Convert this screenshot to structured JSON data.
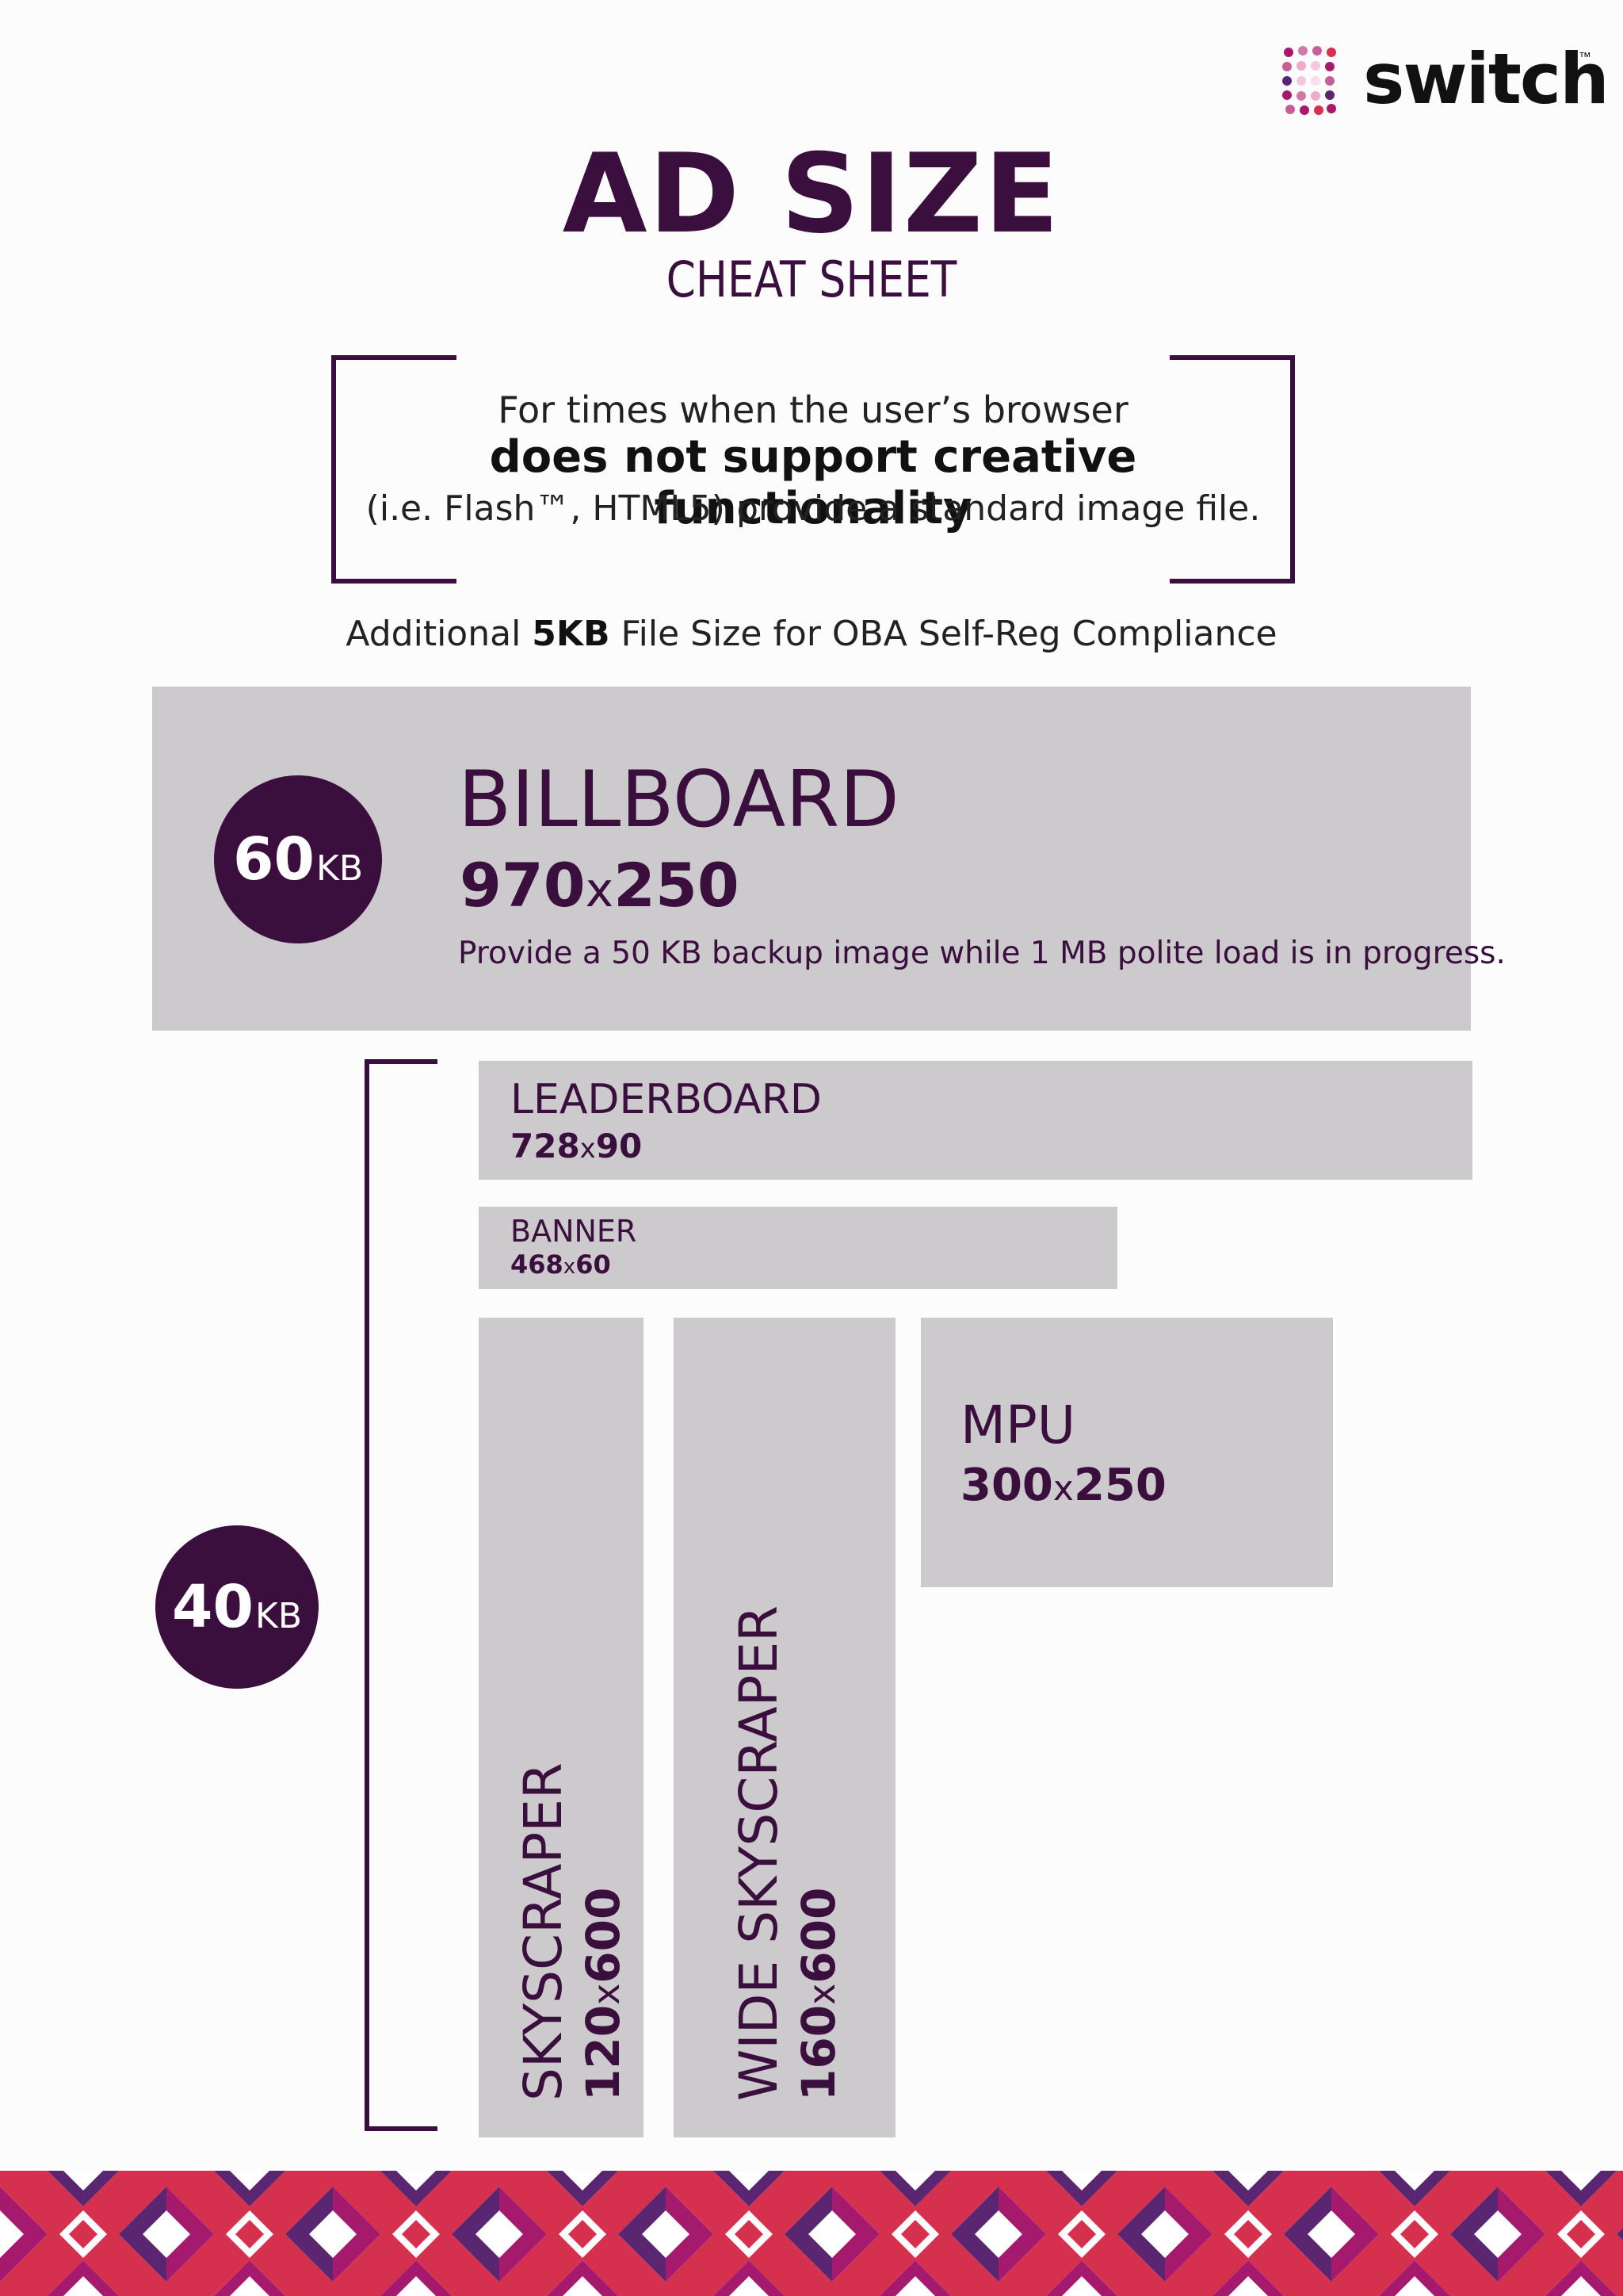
{
  "brand": {
    "name": "switch",
    "trademark": "™"
  },
  "header": {
    "title": "AD SIZE",
    "subtitle": "CHEAT SHEET"
  },
  "notice": {
    "line1": "For times when the user’s browser",
    "line2": "does not support creative functionality",
    "line3": "(i.e. Flash™, HTML5) provide a standard image file."
  },
  "compliance": {
    "prefix": "Additional ",
    "bold": "5KB",
    "suffix": " File Size for OBA Self-Reg Compliance"
  },
  "billboard": {
    "kb_num": "60",
    "kb_unit": "KB",
    "name": "BILLBOARD",
    "w": "970",
    "x": "x",
    "h": "250",
    "note": "Provide a 50 KB backup image while 1 MB polite load is in progress."
  },
  "group40": {
    "kb_num": "40",
    "kb_unit": "KB"
  },
  "leaderboard": {
    "name": "LEADERBOARD",
    "w": "728",
    "x": "x",
    "h": "90"
  },
  "banner": {
    "name": "BANNER",
    "w": "468",
    "x": "x",
    "h": "60"
  },
  "mpu": {
    "name": "MPU",
    "w": "300",
    "x": "x",
    "h": "250"
  },
  "skyscraper": {
    "name": "SKYSCRAPER",
    "w": "120",
    "x": "x",
    "h": "600"
  },
  "wide_skyscraper": {
    "name": "WIDE SKYSCRAPER",
    "w": "160",
    "x": "x",
    "h": "600"
  },
  "colors": {
    "purple": "#3a0f3e",
    "grey": "#cccacd",
    "red": "#d6304f",
    "magenta": "#a51a6c",
    "violet": "#5a2672"
  }
}
